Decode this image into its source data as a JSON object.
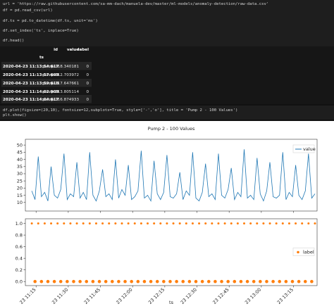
{
  "cells": [
    {
      "lines": [
        "url = 'https://raw.githubusercontent.com/sa-mm-dach/manuela-dev/master/ml-models/anomaly-detection/raw-data.csv'",
        "df = pd.read_csv(url)",
        "df.ts = pd.to_datetime(df.ts, unit='ms')",
        "df.set_index('ts', inplace=True)",
        "df.head()"
      ]
    },
    {
      "lines": [
        "df.plot(figsize=(20,10), fontsize=12,subplots=True, style=['-','o'], title = 'Pump 2 - 100 Values')",
        "plt.show()"
      ]
    }
  ],
  "table": {
    "columns": [
      "id",
      "value",
      "label"
    ],
    "index_name": "ts",
    "rows": [
      [
        "2020-04-23 11:13:54.617",
        "pump-1",
        "18.340181",
        "0"
      ],
      [
        "2020-04-23 11:13:57.699",
        "pump-2",
        "12.703972",
        "0"
      ],
      [
        "2020-04-23 11:13:59.618",
        "pump-1",
        "17.647661",
        "0"
      ],
      [
        "2020-04-23 11:14:02.909",
        "pump-2",
        "13.805114",
        "0"
      ],
      [
        "2020-04-23 11:14:04.617",
        "pump-1",
        "16.874933",
        "0"
      ]
    ]
  },
  "chart_data": [
    {
      "type": "line",
      "title": "Pump 2 - 100 Values",
      "legend": "upper right",
      "x": [
        673,
        674.5,
        676,
        677.5,
        679,
        680.5,
        682,
        683.5,
        685,
        686.5,
        688,
        689.5,
        691,
        692.5,
        694,
        695.5,
        697,
        698.5,
        700,
        701.5,
        703,
        704.5,
        706,
        707.5,
        709,
        710.5,
        712,
        713.5,
        715,
        716.5,
        718,
        719.5,
        721,
        722.5,
        724,
        725.5,
        727,
        728.5,
        730,
        731.5,
        733,
        734.5,
        736,
        737.5,
        739,
        740.5,
        742,
        743.5,
        745,
        746.5,
        748,
        749.5,
        751,
        752.5,
        754,
        755.5,
        757,
        758.5,
        760,
        761.5,
        763,
        764.5,
        766,
        767.5,
        769,
        770.5,
        772,
        773.5,
        775,
        776.5,
        778,
        779.5,
        781,
        782.5,
        784,
        785.5,
        787,
        788.5,
        790,
        791.5,
        793,
        794.5,
        796,
        797.5,
        799,
        800.5,
        802,
        803.5,
        805
      ],
      "series": [
        {
          "name": "value",
          "color": "#1f77b4",
          "values": [
            18,
            12,
            42,
            14,
            17,
            11,
            35,
            15,
            13,
            19,
            44,
            12,
            16,
            14,
            38,
            13,
            17,
            12,
            45,
            15,
            11,
            18,
            33,
            14,
            16,
            12,
            40,
            13,
            19,
            15,
            36,
            12,
            14,
            18,
            46,
            13,
            15,
            11,
            39,
            16,
            12,
            17,
            43,
            14,
            13,
            16,
            31,
            12,
            18,
            15,
            45,
            13,
            11,
            17,
            37,
            14,
            16,
            12,
            44,
            15,
            13,
            19,
            34,
            12,
            17,
            14,
            47,
            13,
            15,
            12,
            41,
            16,
            11,
            18,
            38,
            14,
            13,
            15,
            45,
            12,
            17,
            14,
            36,
            15,
            12,
            18,
            44,
            13,
            16
          ]
        }
      ],
      "xlim": [
        670,
        806
      ],
      "ylim": [
        4,
        54
      ],
      "yticks": [
        10,
        15,
        20,
        25,
        30,
        35,
        40,
        45,
        50
      ]
    },
    {
      "type": "scatter",
      "legend": "center right",
      "xlabel": "ts",
      "x": [
        673,
        674.5,
        676,
        677.5,
        679,
        680.5,
        682,
        683.5,
        685,
        686.5,
        688,
        689.5,
        691,
        692.5,
        694,
        695.5,
        697,
        698.5,
        700,
        701.5,
        703,
        704.5,
        706,
        707.5,
        709,
        710.5,
        712,
        713.5,
        715,
        716.5,
        718,
        719.5,
        721,
        722.5,
        724,
        725.5,
        727,
        728.5,
        730,
        731.5,
        733,
        734.5,
        736,
        737.5,
        739,
        740.5,
        742,
        743.5,
        745,
        746.5,
        748,
        749.5,
        751,
        752.5,
        754,
        755.5,
        757,
        758.5,
        760,
        761.5,
        763,
        764.5,
        766,
        767.5,
        769,
        770.5,
        772,
        773.5,
        775,
        776.5,
        778,
        779.5,
        781,
        782.5,
        784,
        785.5,
        787,
        788.5,
        790,
        791.5,
        793,
        794.5,
        796,
        797.5,
        799,
        800.5,
        802,
        803.5,
        805
      ],
      "series": [
        {
          "name": "label",
          "color": "#ff7f0e",
          "values": [
            1,
            0,
            1,
            0,
            1,
            0,
            1,
            0,
            1,
            0,
            1,
            0,
            1,
            0,
            1,
            0,
            1,
            0,
            1,
            0,
            1,
            0,
            1,
            0,
            1,
            0,
            1,
            0,
            1,
            0,
            1,
            0,
            1,
            0,
            1,
            0,
            1,
            0,
            1,
            0,
            1,
            0,
            1,
            0,
            1,
            0,
            1,
            0,
            1,
            0,
            1,
            0,
            1,
            0,
            1,
            0,
            1,
            0,
            1,
            0,
            1,
            0,
            1,
            0,
            1,
            0,
            1,
            0,
            1,
            0,
            1,
            0,
            1,
            0,
            1,
            0,
            1,
            0,
            1,
            0,
            1,
            0,
            1,
            0,
            1,
            0,
            1,
            0,
            1
          ]
        }
      ],
      "xlim": [
        670,
        806
      ],
      "ylim": [
        -0.07,
        1.08
      ],
      "yticks": [
        {
          "value": 0,
          "label": "0.0"
        },
        {
          "value": 0.2,
          "label": "0.2"
        },
        {
          "value": 0.4,
          "label": "0.4"
        },
        {
          "value": 0.6,
          "label": "0.6"
        },
        {
          "value": 0.8,
          "label": "0.8"
        },
        {
          "value": 1,
          "label": "1.0"
        }
      ],
      "xticks": [
        {
          "value": 675,
          "label": "23 11:15"
        },
        {
          "value": 690,
          "label": "23 11:30"
        },
        {
          "value": 705,
          "label": "23 11:45"
        },
        {
          "value": 720,
          "label": "23 12:00"
        },
        {
          "value": 735,
          "label": "23 12:15"
        },
        {
          "value": 750,
          "label": "23 12:30"
        },
        {
          "value": 765,
          "label": "23 12:45"
        },
        {
          "value": 780,
          "label": "23 13:00"
        },
        {
          "value": 795,
          "label": "23 13:15"
        }
      ]
    }
  ]
}
